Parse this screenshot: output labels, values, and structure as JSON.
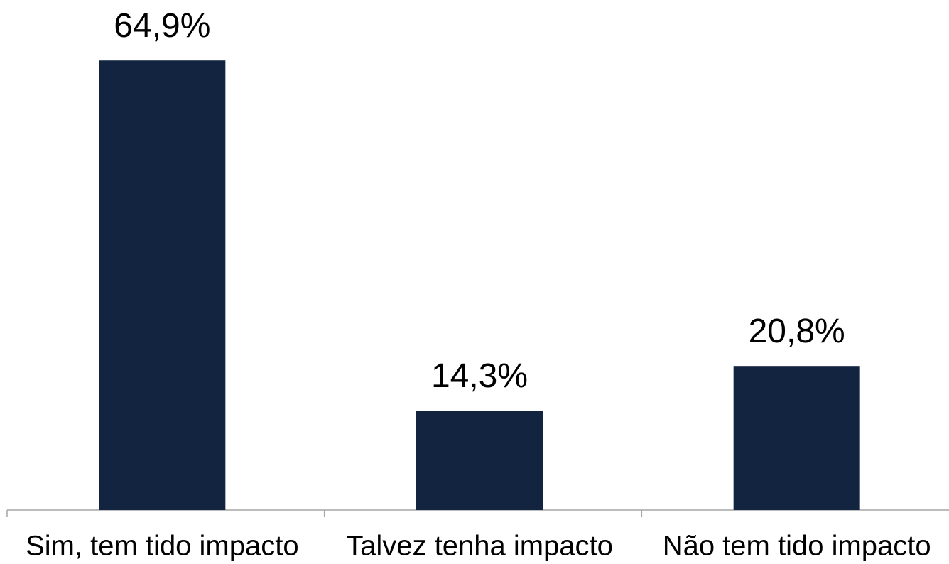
{
  "chart_data": {
    "type": "bar",
    "categories": [
      "Sim, tem tido impacto",
      "Talvez tenha impacto",
      "Não tem tido impacto"
    ],
    "values": [
      64.9,
      14.3,
      20.8
    ],
    "value_labels": [
      "64,9%",
      "14,3%",
      "20,8%"
    ],
    "color": "#12243f"
  }
}
